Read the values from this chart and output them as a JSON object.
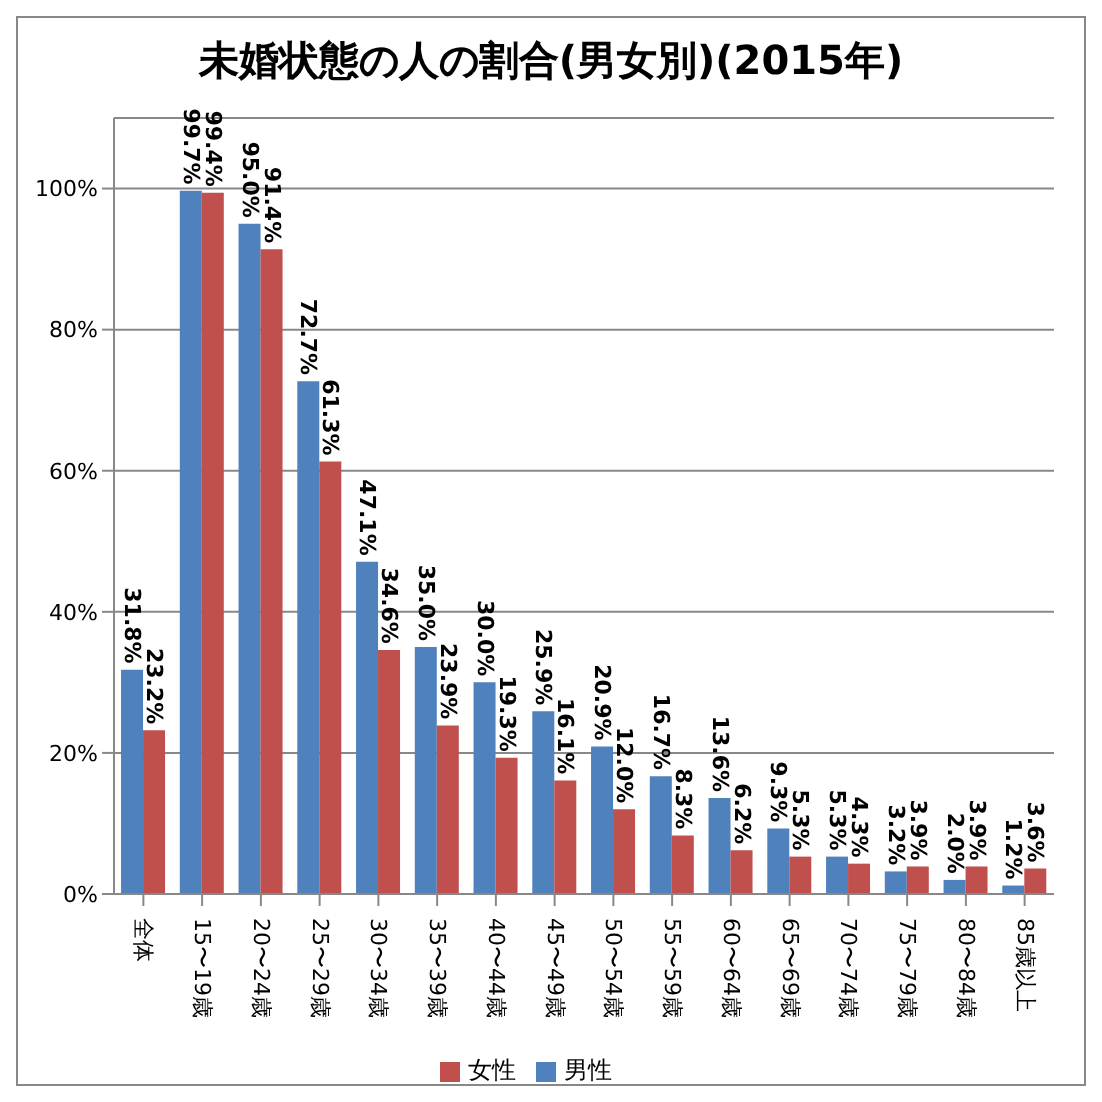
{
  "chart_data": {
    "type": "bar",
    "title": "未婚状態の人の割合(男女別)(2015年)",
    "categories": [
      "全体",
      "15〜19歳",
      "20〜24歳",
      "25〜29歳",
      "30〜34歳",
      "35〜39歳",
      "40〜44歳",
      "45〜49歳",
      "50〜54歳",
      "55〜59歳",
      "60〜64歳",
      "65〜69歳",
      "70〜74歳",
      "75〜79歳",
      "80〜84歳",
      "85歳以上"
    ],
    "series": [
      {
        "name": "男性",
        "color": "#4f81bd",
        "values": [
          31.8,
          99.7,
          95.0,
          72.7,
          47.1,
          35.0,
          30.0,
          25.9,
          20.9,
          16.7,
          13.6,
          9.3,
          5.3,
          3.2,
          2.0,
          1.2
        ],
        "value_labels": [
          "31.8%",
          "99.7%",
          "95.0%",
          "72.7%",
          "47.1%",
          "35.0%",
          "30.0%",
          "25.9%",
          "20.9%",
          "16.7%",
          "13.6%",
          "9.3%",
          "5.3%",
          "3.2%",
          "2.0%",
          "1.2%"
        ]
      },
      {
        "name": "女性",
        "color": "#c0504d",
        "values": [
          23.2,
          99.4,
          91.4,
          61.3,
          34.6,
          23.9,
          19.3,
          16.1,
          12.0,
          8.3,
          6.2,
          5.3,
          4.3,
          3.9,
          3.9,
          3.6
        ],
        "value_labels": [
          "23.2%",
          "99.4%",
          "91.4%",
          "61.3%",
          "34.6%",
          "23.9%",
          "19.3%",
          "16.1%",
          "12.0%",
          "8.3%",
          "6.2%",
          "5.3%",
          "4.3%",
          "3.9%",
          "3.9%",
          "3.6%"
        ]
      }
    ],
    "ylim": [
      0,
      110
    ],
    "yticks": [
      {
        "value": 0,
        "label": "0%"
      },
      {
        "value": 20,
        "label": "20%"
      },
      {
        "value": 40,
        "label": "40%"
      },
      {
        "value": 60,
        "label": "60%"
      },
      {
        "value": 80,
        "label": "80%"
      },
      {
        "value": 100,
        "label": "100%"
      }
    ],
    "grid": "y",
    "legend": "bottom"
  }
}
